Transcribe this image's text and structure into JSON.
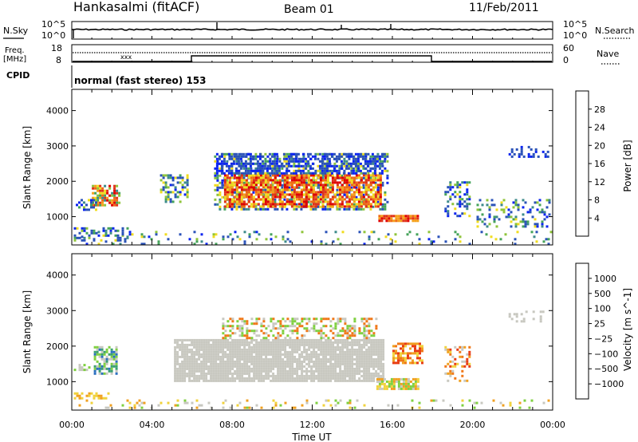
{
  "header": {
    "station": "Hankasalmi (fitACF)",
    "beam": "Beam 01",
    "date": "11/Feb/2011"
  },
  "sky_panel": {
    "left_label": "N.Sky",
    "right_label": "N.Search",
    "left_ticks": [
      "10^5",
      "10^0"
    ],
    "right_ticks": [
      "10^5",
      "10^0"
    ]
  },
  "freq_panel": {
    "left_label_1": "Freq.",
    "left_label_2": "[MHz]",
    "right_label": "Nave",
    "left_ticks": [
      "18",
      "8"
    ],
    "right_ticks": [
      "60",
      "0"
    ]
  },
  "cpid_panel": {
    "label": "CPID",
    "value": "normal (fast stereo) 153"
  },
  "chart_data": [
    {
      "type": "heatmap",
      "name": "power",
      "ylabel": "Slant Range [km]",
      "xlim": [
        0,
        24
      ],
      "ylim": [
        200,
        4600
      ],
      "yticks": [
        1000,
        2000,
        3000,
        4000
      ],
      "colorbar": {
        "label": "Power [dB]",
        "ticks": [
          4,
          8,
          12,
          16,
          20,
          24,
          28
        ],
        "colors": [
          "#0b24f0",
          "#2a52b8",
          "#3c8a8a",
          "#45a35a",
          "#8fc43a",
          "#f0dc1e",
          "#f5a01a",
          "#f06a14",
          "#e0321a",
          "#e00000"
        ]
      }
    },
    {
      "type": "heatmap",
      "name": "velocity",
      "ylabel": "Slant Range [km]",
      "xlabel": "Time UT",
      "xlim": [
        0,
        24
      ],
      "ylim": [
        200,
        4600
      ],
      "yticks": [
        1000,
        2000,
        3000,
        4000
      ],
      "xticks": [
        "00:00",
        "04:00",
        "08:00",
        "12:00",
        "16:00",
        "20:00",
        "00:00"
      ],
      "colorbar": {
        "label": "Velocity [m s^-1]",
        "ticks": [
          "1000",
          "500",
          "100",
          "25",
          "−25",
          "−100",
          "−500",
          "−1000"
        ],
        "colors": [
          "#2a3cb4",
          "#2b6fc0",
          "#3aa070",
          "#7fd040",
          "#c8c8c0",
          "#f0d23c",
          "#f0a020",
          "#f07818",
          "#e83c14",
          "#e00000"
        ]
      }
    }
  ]
}
